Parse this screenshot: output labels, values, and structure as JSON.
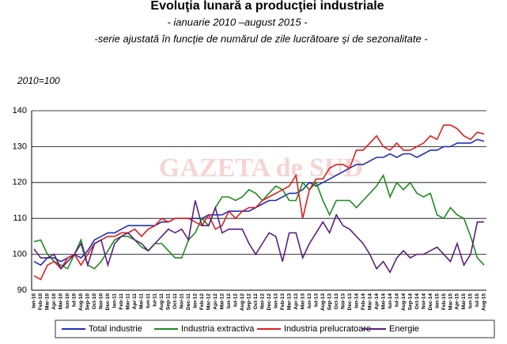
{
  "chart_data": {
    "type": "line",
    "title": "Evoluţia lunară a producţiei industriale",
    "subtitle": "-  ianuarie 2010 –august 2015  -",
    "note": "-serie ajustată în funcţie de numărul de zile lucrătoare şi de sezonalitate  -",
    "y_axis_label": "2010=100",
    "watermark": "GAZETA de SUD",
    "categories": [
      "Ian-10",
      "Feb-10",
      "Mar-10",
      "Apr-10",
      "Mai-10",
      "Iun-10",
      "Iul-10",
      "Aug-10",
      "Sep-10",
      "Oct-10",
      "Noi-10",
      "Dec-10",
      "Ian-11",
      "Feb-11",
      "Mar-11",
      "Apr-11",
      "Mai-11",
      "Iun-11",
      "Iul-11",
      "Aug-11",
      "Sep-11",
      "Oct-11",
      "Noi-11",
      "Dec-11",
      "Ian-12",
      "Feb-12",
      "Mar-12",
      "Apr-12",
      "Mai-12",
      "Iun-12",
      "Iul-12",
      "Aug-12",
      "Sep-12",
      "Oct-12",
      "Noi-12",
      "Dec-12",
      "Ian-13",
      "Feb-13",
      "Mar-13",
      "Apr-13",
      "Mai-13",
      "Iun-13",
      "Iul-13",
      "Aug-13",
      "Sep-13",
      "Oct-13",
      "Noi-13",
      "Dec-13",
      "Ian-14",
      "Feb-14",
      "Mar-14",
      "Apr-14",
      "Mai-14",
      "Iun-14",
      "Iul-14",
      "Aug-14",
      "Sep-14",
      "Oct-14",
      "Noi-14",
      "Dec-14",
      "Ian-15",
      "Feb-15",
      "Mar-15",
      "Apr-15",
      "Mai-15",
      "Iun-15",
      "Iul-15",
      "Aug-15"
    ],
    "series": [
      {
        "name": "Total industrie",
        "color": "#1f2fb5",
        "values": [
          98,
          97,
          99,
          99,
          98,
          99,
          100,
          99,
          101,
          104,
          105,
          106,
          106,
          107,
          108,
          108,
          108,
          108,
          108,
          109,
          109,
          110,
          110,
          110,
          110,
          110,
          111,
          111,
          111,
          112,
          112,
          112,
          112,
          113,
          114,
          115,
          115,
          116,
          117,
          117,
          118,
          120,
          119,
          120,
          121,
          122,
          123,
          124,
          125,
          125,
          126,
          127,
          127,
          128,
          127,
          128,
          128,
          127,
          128,
          129,
          129,
          130,
          130,
          131,
          131,
          131,
          132,
          131.5
        ]
      },
      {
        "name": "Industria extractiva",
        "color": "#1e8c1e",
        "values": [
          103.5,
          104,
          100,
          98,
          97,
          96,
          100,
          104,
          97,
          96,
          98,
          101,
          104,
          105,
          105,
          104,
          102,
          101,
          103,
          103,
          101,
          99,
          99,
          104,
          106,
          110,
          108,
          113,
          116,
          116,
          115,
          116,
          118,
          117,
          115,
          117,
          119,
          118,
          115,
          115,
          120,
          118,
          120,
          115,
          111,
          115,
          115,
          115,
          113,
          115,
          117,
          119,
          122,
          116,
          120,
          118,
          120,
          117,
          116,
          117,
          111,
          110,
          113,
          111,
          110,
          105,
          99,
          97
        ]
      },
      {
        "name": "Industria prelucratoare",
        "color": "#e01e1e",
        "values": [
          94,
          93,
          97,
          98,
          96,
          99,
          100,
          97,
          100,
          103,
          104,
          105,
          105,
          106,
          106,
          107,
          105,
          107,
          108,
          110,
          109,
          110,
          110,
          110,
          109,
          108,
          111,
          107,
          108,
          112,
          110,
          112,
          113,
          113,
          115,
          116,
          117,
          118,
          119,
          122,
          110,
          118,
          121,
          121,
          124,
          125,
          125,
          124,
          129,
          129,
          131,
          133,
          130,
          129,
          131,
          129,
          129,
          130,
          131,
          133,
          132,
          136,
          136,
          135,
          133,
          132,
          134,
          133.5
        ]
      },
      {
        "name": "Energie",
        "color": "#5a2080",
        "values": [
          101.5,
          99,
          99,
          100,
          96,
          98,
          100,
          103,
          97,
          103,
          104,
          97,
          103,
          105,
          106,
          104,
          103,
          101,
          103,
          105,
          107,
          106,
          107,
          104,
          115,
          108,
          108,
          113,
          106,
          107,
          107,
          107,
          103,
          100,
          103,
          106,
          105,
          98,
          106,
          106,
          99,
          103,
          106,
          109,
          106,
          111,
          108,
          107,
          105,
          103,
          100,
          96,
          98,
          95,
          99,
          101,
          99,
          100,
          100,
          101,
          102,
          100,
          98,
          103,
          97,
          100,
          109,
          109
        ]
      }
    ],
    "ylim": [
      90,
      140
    ],
    "yticks": [
      90,
      100,
      110,
      120,
      130,
      140
    ],
    "grid": true,
    "legend": "bottom"
  }
}
